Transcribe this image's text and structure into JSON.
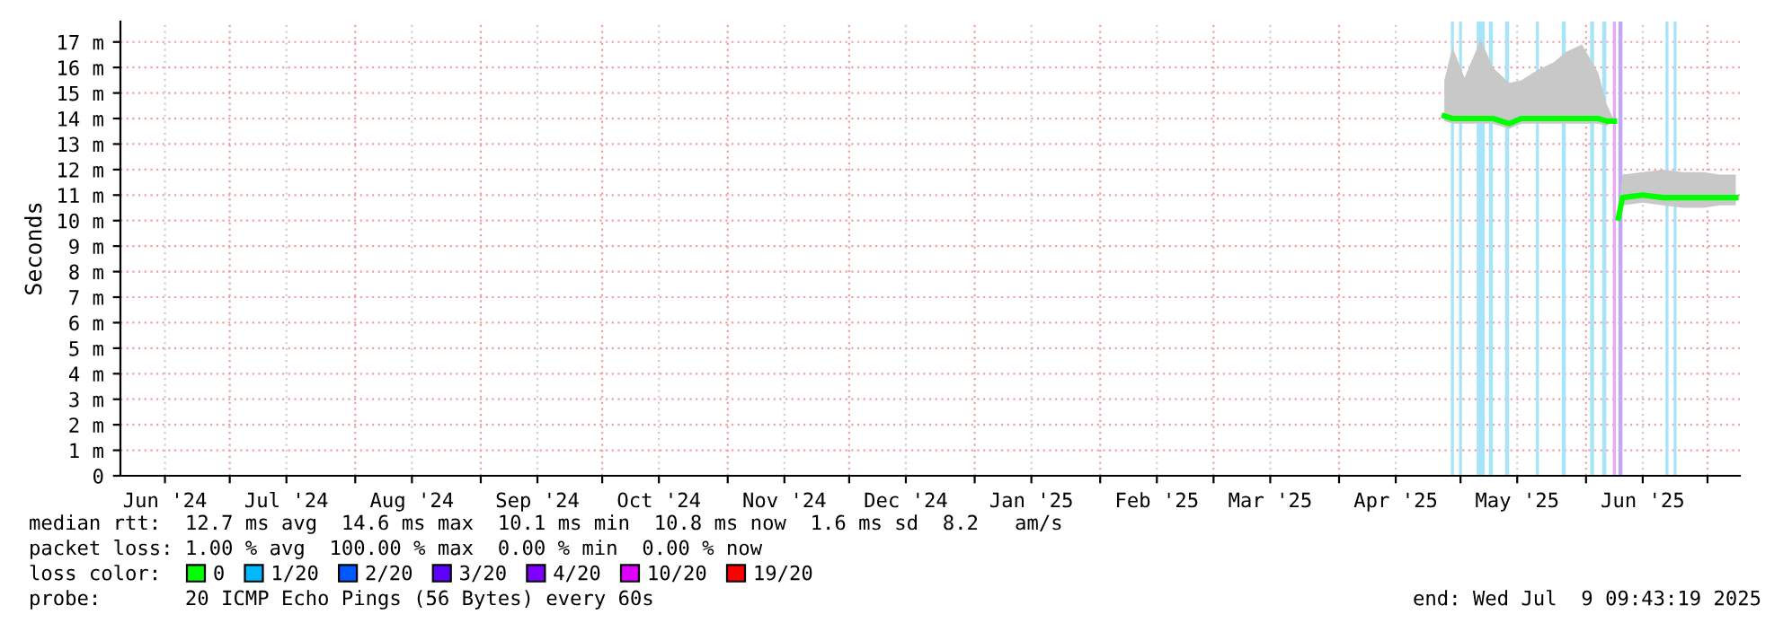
{
  "chart_data": {
    "type": "line",
    "ylabel": "Seconds",
    "xlim": [
      "2024-06-04",
      "2025-07-09"
    ],
    "xticks": [
      {
        "value": "2024-06-15",
        "label": "Jun '24"
      },
      {
        "value": "2024-07-01",
        "label": null
      },
      {
        "value": "2024-07-15",
        "label": "Jul '24"
      },
      {
        "value": "2024-08-01",
        "label": null
      },
      {
        "value": "2024-08-15",
        "label": "Aug '24"
      },
      {
        "value": "2024-09-01",
        "label": null
      },
      {
        "value": "2024-09-15",
        "label": "Sep '24"
      },
      {
        "value": "2024-10-01",
        "label": null
      },
      {
        "value": "2024-10-15",
        "label": "Oct '24"
      },
      {
        "value": "2024-11-01",
        "label": null
      },
      {
        "value": "2024-11-15",
        "label": "Nov '24"
      },
      {
        "value": "2024-12-01",
        "label": null
      },
      {
        "value": "2024-12-15",
        "label": "Dec '24"
      },
      {
        "value": "2025-01-01",
        "label": null
      },
      {
        "value": "2025-01-15",
        "label": "Jan '25"
      },
      {
        "value": "2025-02-01",
        "label": null
      },
      {
        "value": "2025-02-15",
        "label": "Feb '25"
      },
      {
        "value": "2025-03-01",
        "label": null
      },
      {
        "value": "2025-03-15",
        "label": "Mar '25"
      },
      {
        "value": "2025-04-01",
        "label": null
      },
      {
        "value": "2025-04-15",
        "label": "Apr '25"
      },
      {
        "value": "2025-05-01",
        "label": null
      },
      {
        "value": "2025-05-15",
        "label": "May '25"
      },
      {
        "value": "2025-06-01",
        "label": null
      },
      {
        "value": "2025-06-15",
        "label": "Jun '25"
      },
      {
        "value": "2025-07-01",
        "label": null
      }
    ],
    "ylim": [
      0,
      17.8
    ],
    "yticks": [
      0,
      {
        "value": 1,
        "label": "1 m"
      },
      {
        "value": 2,
        "label": "2 m"
      },
      {
        "value": 3,
        "label": "3 m"
      },
      {
        "value": 4,
        "label": "4 m"
      },
      {
        "value": 5,
        "label": "5 m"
      },
      {
        "value": 6,
        "label": "6 m"
      },
      {
        "value": 7,
        "label": "7 m"
      },
      {
        "value": 8,
        "label": "8 m"
      },
      {
        "value": 9,
        "label": "9 m"
      },
      {
        "value": 10,
        "label": "10 m"
      },
      {
        "value": 11,
        "label": "11 m"
      },
      {
        "value": 12,
        "label": "12 m"
      },
      {
        "value": 13,
        "label": "13 m"
      },
      {
        "value": 14,
        "label": "14 m"
      },
      {
        "value": 15,
        "label": "15 m"
      },
      {
        "value": 16,
        "label": "16 m"
      },
      {
        "value": 17,
        "label": "17 m"
      }
    ],
    "grid": true,
    "legend": "bottom",
    "legend_title": "loss color:",
    "series": [
      {
        "name": "0",
        "color": "#00ff00",
        "x": [
          "2025-04-27",
          "2025-04-29",
          "2025-05-02",
          "2025-05-06",
          "2025-05-09",
          "2025-05-13",
          "2025-05-16",
          "2025-05-20",
          "2025-05-24",
          "2025-05-27",
          "2025-05-31",
          "2025-06-04",
          "2025-06-06",
          "2025-06-08",
          "2025-06-08T12:00",
          "2025-06-09",
          "2025-06-10",
          "2025-06-15",
          "2025-06-20",
          "2025-06-25",
          "2025-06-30",
          "2025-07-04",
          "2025-07-08"
        ],
        "values": [
          14.1,
          14.0,
          14.0,
          14.0,
          14.0,
          13.8,
          14.0,
          14.0,
          14.0,
          14.0,
          14.0,
          14.0,
          13.9,
          13.9,
          null,
          10.1,
          10.9,
          11.0,
          10.9,
          10.9,
          10.9,
          10.9,
          10.9
        ],
        "lower": [
          13.9,
          13.8,
          13.8,
          13.8,
          13.8,
          13.6,
          13.8,
          13.8,
          13.8,
          13.8,
          13.8,
          13.8,
          13.7,
          13.9,
          null,
          9.9,
          10.6,
          10.7,
          10.6,
          10.5,
          10.5,
          10.6,
          10.6
        ],
        "upper": [
          15.5,
          16.8,
          15.6,
          17.1,
          16.0,
          15.4,
          15.5,
          15.9,
          16.2,
          16.6,
          16.9,
          15.8,
          14.6,
          13.9,
          null,
          10.4,
          11.8,
          11.9,
          12.0,
          11.9,
          11.9,
          11.8,
          11.8
        ]
      },
      {
        "name": "1/20",
        "color": "#00b8ff"
      },
      {
        "name": "2/20",
        "color": "#0059ff"
      },
      {
        "name": "3/20",
        "color": "#5e00ff"
      },
      {
        "name": "4/20",
        "color": "#7e00ff"
      },
      {
        "name": "10/20",
        "color": "#dd00ff"
      },
      {
        "name": "19/20",
        "color": "#ff0000"
      }
    ],
    "ref_lines": [
      {
        "axis": "x",
        "value": "2025-04-29",
        "color": "#a8e4f8"
      },
      {
        "axis": "x",
        "value": "2025-05-01",
        "color": "#a8e4f8"
      },
      {
        "axis": "x",
        "value": "2025-05-20",
        "color": "#a8e4f8"
      },
      {
        "axis": "x",
        "value": "2025-06-08",
        "color": "#e8a8f8"
      },
      {
        "axis": "x",
        "value": "2025-06-21",
        "color": "#a8e4f8"
      },
      {
        "axis": "x",
        "value": "2025-06-23",
        "color": "#a8e4f8"
      }
    ],
    "bands": [
      {
        "axis": "x",
        "from": "2025-05-05",
        "to": "2025-05-07",
        "color": "#a8e4f8"
      },
      {
        "axis": "x",
        "from": "2025-05-08",
        "to": "2025-05-09",
        "color": "#a8e4f8"
      },
      {
        "axis": "x",
        "from": "2025-05-12",
        "to": "2025-05-13",
        "color": "#a8e4f8"
      },
      {
        "axis": "x",
        "from": "2025-05-26",
        "to": "2025-05-27",
        "color": "#a8e4f8"
      },
      {
        "axis": "x",
        "from": "2025-06-02",
        "to": "2025-06-03",
        "color": "#a8e4f8"
      },
      {
        "axis": "x",
        "from": "2025-06-05",
        "to": "2025-06-06",
        "color": "#a8e4f8"
      },
      {
        "axis": "x",
        "from": "2025-06-09",
        "to": "2025-06-10",
        "color": "#c0a8f8"
      }
    ],
    "annotations": [
      "median rtt:  12.7 ms avg  14.6 ms max  10.1 ms min  10.8 ms now  1.6 ms sd  8.2   am/s",
      "packet loss: 1.00 % avg  100.00 % max  0.00 % min  0.00 % now",
      "probe:       20 ICMP Echo Pings (56 Bytes) every 60s",
      "end: Wed Jul  9 09:43:19 2025"
    ]
  }
}
